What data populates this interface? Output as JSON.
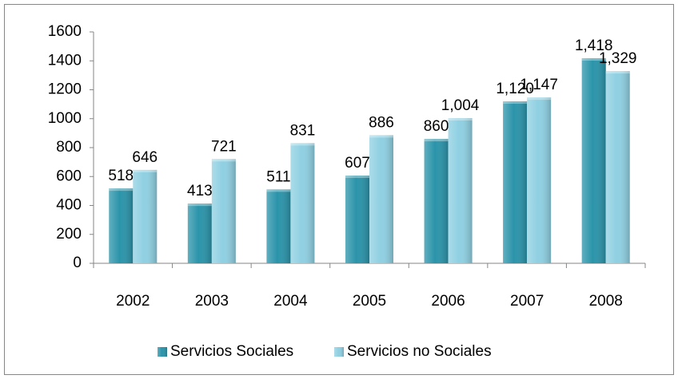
{
  "chart_data": {
    "type": "bar",
    "categories": [
      "2002",
      "2003",
      "2004",
      "2005",
      "2006",
      "2007",
      "2008"
    ],
    "series": [
      {
        "name": "Servicios Sociales",
        "color": "#2b94aa",
        "values": [
          518,
          413,
          511,
          607,
          860,
          1120,
          1418
        ],
        "value_labels": [
          "518",
          "413",
          "511",
          "607",
          "860",
          "1,120",
          "1,418"
        ]
      },
      {
        "name": "Servicios no Sociales",
        "color": "#8fd0e2",
        "values": [
          646,
          721,
          831,
          886,
          1004,
          1147,
          1329
        ],
        "value_labels": [
          "646",
          "721",
          "831",
          "886",
          "1,004",
          "1,147",
          "1,329"
        ]
      }
    ],
    "ylim": [
      0,
      1600
    ],
    "yticks": [
      0,
      200,
      400,
      600,
      800,
      1000,
      1200,
      1400,
      1600
    ],
    "grid": false,
    "legend": "bottom"
  }
}
